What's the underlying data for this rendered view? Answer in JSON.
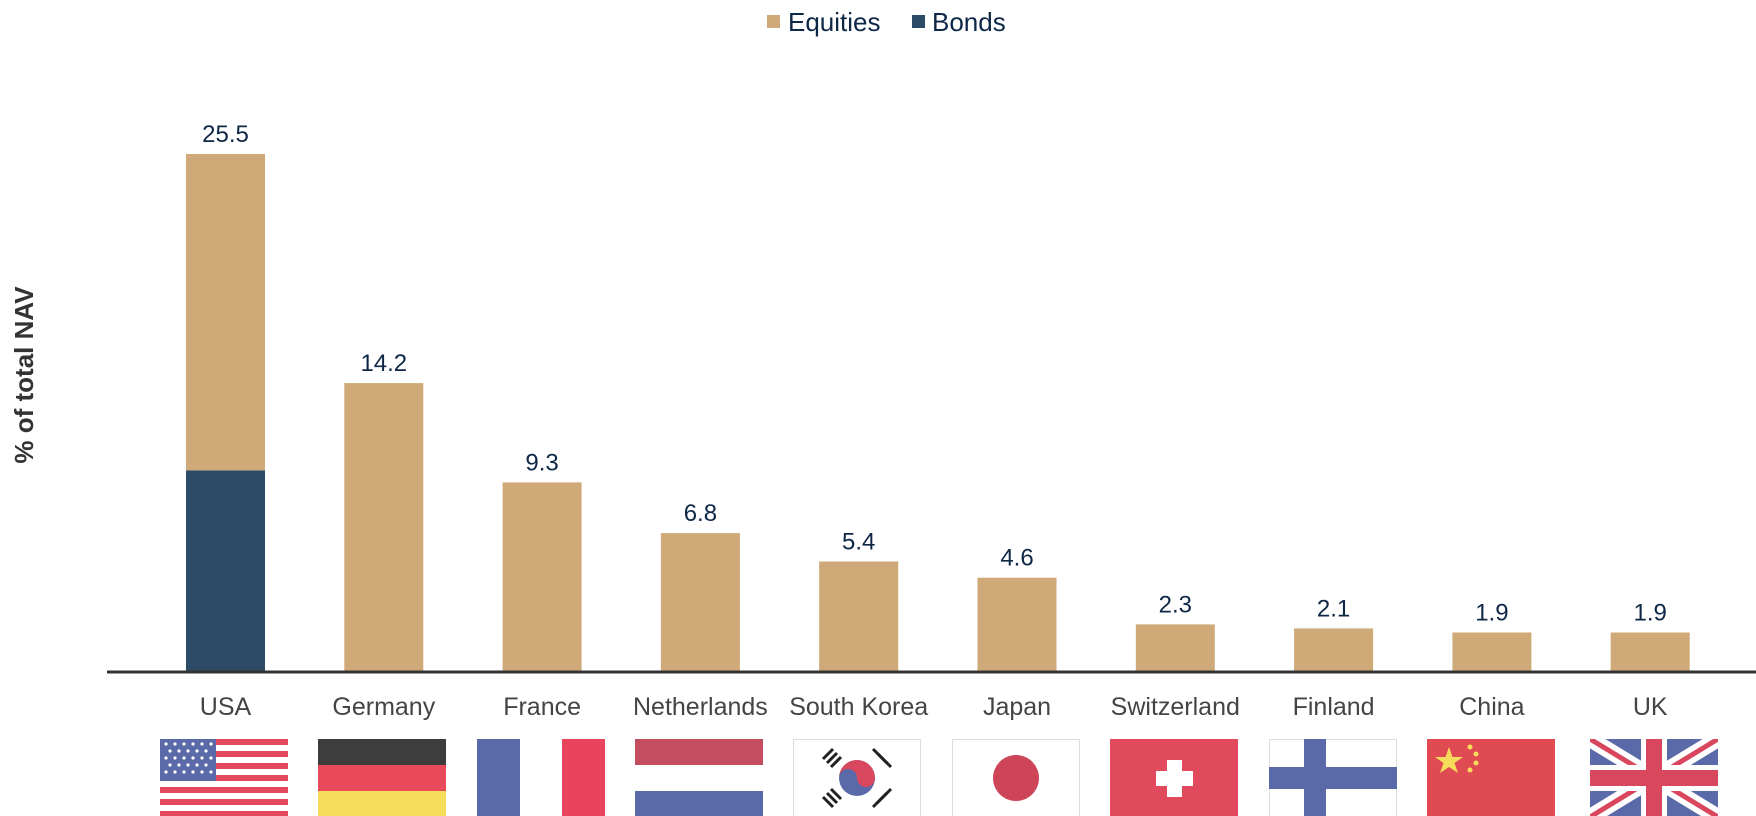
{
  "chart_data": {
    "type": "bar",
    "stacked": true,
    "title": "",
    "xlabel": "",
    "ylabel": "% of total NAV",
    "legend": {
      "position": "top-center",
      "entries": [
        {
          "name": "Equities",
          "color": "#cfa977"
        },
        {
          "name": "Bonds",
          "color": "#2d4b66"
        }
      ]
    },
    "categories": [
      "USA",
      "Germany",
      "France",
      "Netherlands",
      "South Korea",
      "Japan",
      "Switzerland",
      "Finland",
      "China",
      "UK"
    ],
    "series": [
      {
        "name": "Bonds",
        "color": "#2d4b66",
        "values": [
          9.9,
          0,
          0,
          0,
          0,
          0,
          0,
          0,
          0,
          0
        ]
      },
      {
        "name": "Equities",
        "color": "#cfa977",
        "values": [
          15.6,
          14.2,
          9.3,
          6.8,
          5.4,
          4.6,
          2.3,
          2.1,
          1.9,
          1.9
        ]
      }
    ],
    "totals": [
      "25.5",
      "14.2",
      "9.3",
      "6.8",
      "5.4",
      "4.6",
      "2.3",
      "2.1",
      "1.9",
      "1.9"
    ],
    "ylim": [
      0,
      25.5
    ],
    "y_axis_visible": false,
    "grid": false,
    "flags": [
      "usa-flag",
      "germany-flag",
      "france-flag",
      "netherlands-flag",
      "south-korea-flag",
      "japan-flag",
      "switzerland-flag",
      "finland-flag",
      "china-flag",
      "uk-flag"
    ]
  }
}
